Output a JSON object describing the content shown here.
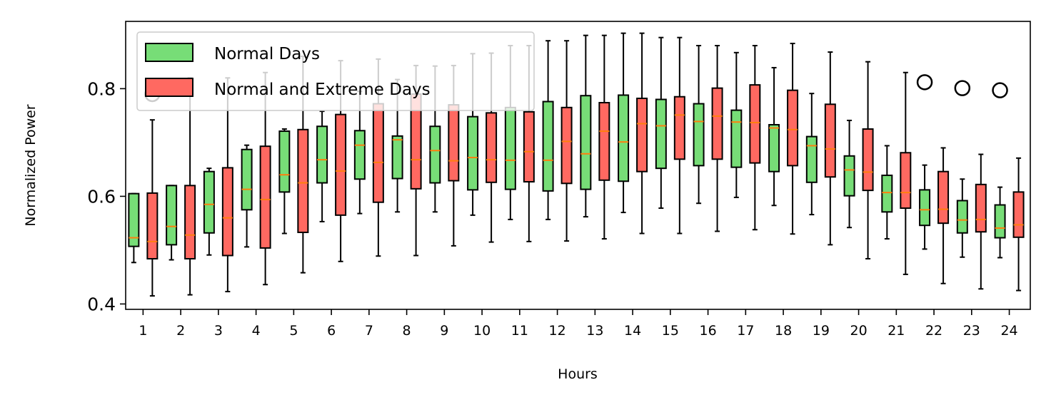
{
  "chart_data": {
    "type": "boxplot",
    "xlabel": "Hours",
    "ylabel": "Normalized Power",
    "ylim": [
      0.39,
      0.925
    ],
    "yticks": [
      0.4,
      0.6,
      0.8
    ],
    "ytick_labels": [
      "0.4",
      "0.6",
      "0.8"
    ],
    "categories": [
      "1",
      "2",
      "3",
      "4",
      "5",
      "6",
      "7",
      "8",
      "9",
      "10",
      "11",
      "12",
      "13",
      "14",
      "15",
      "16",
      "17",
      "18",
      "19",
      "20",
      "21",
      "22",
      "23",
      "24"
    ],
    "grid": false,
    "legend_position": "top-left",
    "series": [
      {
        "name": "Normal Days",
        "color": "#77dd77",
        "median_color": "#ff7f0e",
        "boxes": [
          {
            "whislo": 0.477,
            "q1": 0.507,
            "med": 0.523,
            "q3": 0.605,
            "whishi": 0.605,
            "fliers": []
          },
          {
            "whislo": 0.482,
            "q1": 0.51,
            "med": 0.544,
            "q3": 0.62,
            "whishi": 0.62,
            "fliers": []
          },
          {
            "whislo": 0.491,
            "q1": 0.532,
            "med": 0.585,
            "q3": 0.646,
            "whishi": 0.652,
            "fliers": []
          },
          {
            "whislo": 0.506,
            "q1": 0.575,
            "med": 0.613,
            "q3": 0.687,
            "whishi": 0.695,
            "fliers": []
          },
          {
            "whislo": 0.531,
            "q1": 0.608,
            "med": 0.64,
            "q3": 0.721,
            "whishi": 0.725,
            "fliers": []
          },
          {
            "whislo": 0.553,
            "q1": 0.625,
            "med": 0.668,
            "q3": 0.73,
            "whishi": 0.758,
            "fliers": []
          },
          {
            "whislo": 0.568,
            "q1": 0.632,
            "med": 0.695,
            "q3": 0.722,
            "whishi": 0.795,
            "fliers": []
          },
          {
            "whislo": 0.571,
            "q1": 0.633,
            "med": 0.705,
            "q3": 0.712,
            "whishi": 0.817,
            "fliers": []
          },
          {
            "whislo": 0.571,
            "q1": 0.625,
            "med": 0.685,
            "q3": 0.73,
            "whishi": 0.842,
            "fliers": []
          },
          {
            "whislo": 0.565,
            "q1": 0.612,
            "med": 0.672,
            "q3": 0.748,
            "whishi": 0.865,
            "fliers": []
          },
          {
            "whislo": 0.557,
            "q1": 0.613,
            "med": 0.667,
            "q3": 0.765,
            "whishi": 0.88,
            "fliers": []
          },
          {
            "whislo": 0.557,
            "q1": 0.61,
            "med": 0.667,
            "q3": 0.776,
            "whishi": 0.889,
            "fliers": []
          },
          {
            "whislo": 0.562,
            "q1": 0.613,
            "med": 0.679,
            "q3": 0.787,
            "whishi": 0.899,
            "fliers": []
          },
          {
            "whislo": 0.57,
            "q1": 0.628,
            "med": 0.701,
            "q3": 0.788,
            "whishi": 0.903,
            "fliers": []
          },
          {
            "whislo": 0.578,
            "q1": 0.652,
            "med": 0.731,
            "q3": 0.78,
            "whishi": 0.895,
            "fliers": []
          },
          {
            "whislo": 0.587,
            "q1": 0.657,
            "med": 0.739,
            "q3": 0.772,
            "whishi": 0.88,
            "fliers": []
          },
          {
            "whislo": 0.598,
            "q1": 0.654,
            "med": 0.738,
            "q3": 0.76,
            "whishi": 0.867,
            "fliers": []
          },
          {
            "whislo": 0.583,
            "q1": 0.646,
            "med": 0.727,
            "q3": 0.733,
            "whishi": 0.839,
            "fliers": []
          },
          {
            "whislo": 0.566,
            "q1": 0.626,
            "med": 0.694,
            "q3": 0.711,
            "whishi": 0.791,
            "fliers": []
          },
          {
            "whislo": 0.542,
            "q1": 0.601,
            "med": 0.649,
            "q3": 0.675,
            "whishi": 0.741,
            "fliers": []
          },
          {
            "whislo": 0.521,
            "q1": 0.571,
            "med": 0.607,
            "q3": 0.639,
            "whishi": 0.694,
            "fliers": []
          },
          {
            "whislo": 0.502,
            "q1": 0.546,
            "med": 0.575,
            "q3": 0.612,
            "whishi": 0.658,
            "fliers": [
              0.812
            ]
          },
          {
            "whislo": 0.487,
            "q1": 0.532,
            "med": 0.556,
            "q3": 0.592,
            "whishi": 0.632,
            "fliers": [
              0.801
            ]
          },
          {
            "whislo": 0.486,
            "q1": 0.523,
            "med": 0.541,
            "q3": 0.584,
            "whishi": 0.617,
            "fliers": [
              0.797
            ]
          }
        ]
      },
      {
        "name": "Normal and Extreme Days",
        "color": "#ff6961",
        "median_color": "#ff7f0e",
        "boxes": [
          {
            "whislo": 0.415,
            "q1": 0.484,
            "med": 0.516,
            "q3": 0.606,
            "whishi": 0.742,
            "fliers": [
              0.79
            ]
          },
          {
            "whislo": 0.417,
            "q1": 0.484,
            "med": 0.528,
            "q3": 0.62,
            "whishi": 0.82,
            "fliers": []
          },
          {
            "whislo": 0.423,
            "q1": 0.49,
            "med": 0.56,
            "q3": 0.653,
            "whishi": 0.82,
            "fliers": []
          },
          {
            "whislo": 0.436,
            "q1": 0.504,
            "med": 0.594,
            "q3": 0.693,
            "whishi": 0.83,
            "fliers": []
          },
          {
            "whislo": 0.458,
            "q1": 0.533,
            "med": 0.625,
            "q3": 0.724,
            "whishi": 0.86,
            "fliers": []
          },
          {
            "whislo": 0.479,
            "q1": 0.565,
            "med": 0.647,
            "q3": 0.752,
            "whishi": 0.852,
            "fliers": []
          },
          {
            "whislo": 0.489,
            "q1": 0.589,
            "med": 0.663,
            "q3": 0.772,
            "whishi": 0.855,
            "fliers": []
          },
          {
            "whislo": 0.49,
            "q1": 0.614,
            "med": 0.668,
            "q3": 0.79,
            "whishi": 0.843,
            "fliers": []
          },
          {
            "whislo": 0.508,
            "q1": 0.629,
            "med": 0.666,
            "q3": 0.77,
            "whishi": 0.843,
            "fliers": []
          },
          {
            "whislo": 0.515,
            "q1": 0.626,
            "med": 0.668,
            "q3": 0.755,
            "whishi": 0.866,
            "fliers": []
          },
          {
            "whislo": 0.516,
            "q1": 0.627,
            "med": 0.683,
            "q3": 0.757,
            "whishi": 0.88,
            "fliers": []
          },
          {
            "whislo": 0.517,
            "q1": 0.624,
            "med": 0.702,
            "q3": 0.765,
            "whishi": 0.889,
            "fliers": []
          },
          {
            "whislo": 0.521,
            "q1": 0.63,
            "med": 0.721,
            "q3": 0.774,
            "whishi": 0.899,
            "fliers": []
          },
          {
            "whislo": 0.531,
            "q1": 0.646,
            "med": 0.735,
            "q3": 0.782,
            "whishi": 0.903,
            "fliers": []
          },
          {
            "whislo": 0.531,
            "q1": 0.669,
            "med": 0.751,
            "q3": 0.785,
            "whishi": 0.895,
            "fliers": []
          },
          {
            "whislo": 0.535,
            "q1": 0.669,
            "med": 0.749,
            "q3": 0.801,
            "whishi": 0.88,
            "fliers": []
          },
          {
            "whislo": 0.538,
            "q1": 0.662,
            "med": 0.737,
            "q3": 0.807,
            "whishi": 0.88,
            "fliers": []
          },
          {
            "whislo": 0.53,
            "q1": 0.657,
            "med": 0.724,
            "q3": 0.797,
            "whishi": 0.884,
            "fliers": []
          },
          {
            "whislo": 0.51,
            "q1": 0.636,
            "med": 0.688,
            "q3": 0.771,
            "whishi": 0.868,
            "fliers": []
          },
          {
            "whislo": 0.484,
            "q1": 0.611,
            "med": 0.645,
            "q3": 0.725,
            "whishi": 0.85,
            "fliers": []
          },
          {
            "whislo": 0.455,
            "q1": 0.578,
            "med": 0.607,
            "q3": 0.681,
            "whishi": 0.83,
            "fliers": []
          },
          {
            "whislo": 0.438,
            "q1": 0.55,
            "med": 0.576,
            "q3": 0.646,
            "whishi": 0.69,
            "fliers": []
          },
          {
            "whislo": 0.428,
            "q1": 0.534,
            "med": 0.557,
            "q3": 0.622,
            "whishi": 0.678,
            "fliers": []
          },
          {
            "whislo": 0.425,
            "q1": 0.524,
            "med": 0.547,
            "q3": 0.608,
            "whishi": 0.671,
            "fliers": []
          }
        ]
      }
    ]
  }
}
